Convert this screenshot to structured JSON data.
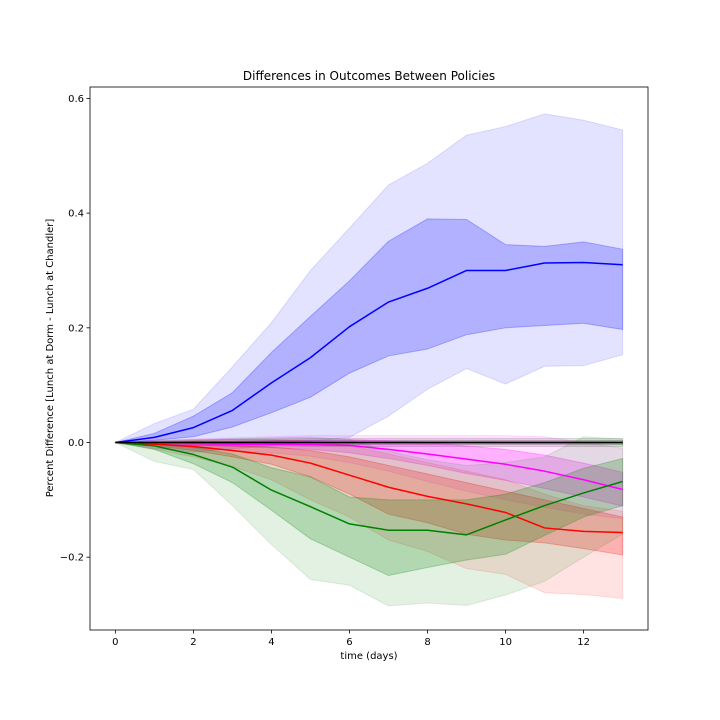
{
  "chart_data": {
    "type": "line",
    "title": "Differences in Outcomes Between Policies",
    "xlabel": "time (days)",
    "ylabel": "Percent Difference [Lunch at Dorm - Lunch at Chandler]",
    "xlim": [
      -0.65,
      13.65
    ],
    "ylim": [
      -0.327,
      0.62
    ],
    "xticks": [
      0,
      2,
      4,
      6,
      8,
      10,
      12
    ],
    "yticks": [
      -0.2,
      0.0,
      0.2,
      0.4,
      0.6
    ],
    "xtick_labels": [
      "0",
      "2",
      "4",
      "6",
      "8",
      "10",
      "12"
    ],
    "ytick_labels": [
      "−0.2",
      "0.0",
      "0.2",
      "0.4",
      "0.6"
    ],
    "grid": false,
    "legend": "none",
    "x": [
      0,
      1,
      2,
      3,
      4,
      5,
      6,
      7,
      8,
      9,
      10,
      11,
      12,
      13
    ],
    "series": [
      {
        "color": "#0000ff",
        "mean": [
          0,
          0.009,
          0.026,
          0.056,
          0.104,
          0.148,
          0.202,
          0.245,
          0.269,
          0.3,
          0.3,
          0.313,
          0.314,
          0.31
        ],
        "inner_low": [
          0,
          0.004,
          0.01,
          0.027,
          0.052,
          0.079,
          0.121,
          0.151,
          0.163,
          0.188,
          0.2,
          0.204,
          0.208,
          0.197
        ],
        "inner_high": [
          0,
          0.016,
          0.046,
          0.087,
          0.157,
          0.22,
          0.282,
          0.351,
          0.39,
          0.389,
          0.345,
          0.342,
          0.35,
          0.337
        ],
        "outer_low": [
          0,
          -0.01,
          -0.017,
          -0.011,
          -0.006,
          0.002,
          0.009,
          0.046,
          0.093,
          0.129,
          0.102,
          0.133,
          0.134,
          0.153
        ],
        "outer_high": [
          0,
          0.033,
          0.058,
          0.132,
          0.209,
          0.3,
          0.374,
          0.449,
          0.487,
          0.536,
          0.551,
          0.573,
          0.562,
          0.545
        ]
      },
      {
        "color": "#000000",
        "mean": [
          0,
          0.0,
          0.0,
          0.0,
          0.0,
          0.0,
          0.0,
          0.0,
          0.0,
          0.0,
          0.0,
          0.0,
          0.0,
          0.0
        ],
        "inner_low": [
          0,
          -0.001,
          -0.002,
          -0.002,
          -0.003,
          -0.003,
          -0.003,
          -0.003,
          -0.003,
          -0.003,
          -0.003,
          -0.003,
          -0.003,
          -0.003
        ],
        "inner_high": [
          0,
          0.001,
          0.002,
          0.002,
          0.003,
          0.003,
          0.003,
          0.003,
          0.003,
          0.003,
          0.003,
          0.003,
          0.003,
          0.003
        ],
        "outer_low": [
          0,
          -0.003,
          -0.005,
          -0.006,
          -0.006,
          -0.007,
          -0.007,
          -0.007,
          -0.007,
          -0.007,
          -0.007,
          -0.007,
          -0.007,
          -0.007
        ],
        "outer_high": [
          0,
          0.003,
          0.005,
          0.006,
          0.006,
          0.007,
          0.007,
          0.007,
          0.007,
          0.007,
          0.007,
          0.007,
          0.007,
          0.007
        ]
      },
      {
        "color": "#ff00ff",
        "mean": [
          0,
          -0.001,
          -0.002,
          -0.003,
          -0.003,
          -0.004,
          -0.005,
          -0.012,
          -0.02,
          -0.029,
          -0.038,
          -0.05,
          -0.065,
          -0.082
        ],
        "inner_low": [
          0,
          -0.003,
          -0.005,
          -0.007,
          -0.009,
          -0.012,
          -0.018,
          -0.028,
          -0.04,
          -0.054,
          -0.066,
          -0.08,
          -0.095,
          -0.111
        ],
        "inner_high": [
          0,
          0.001,
          0.002,
          0.002,
          0.003,
          0.004,
          0.005,
          0.003,
          0.0,
          -0.006,
          -0.012,
          -0.022,
          -0.036,
          -0.052
        ],
        "outer_low": [
          0,
          -0.006,
          -0.01,
          -0.014,
          -0.018,
          -0.024,
          -0.035,
          -0.05,
          -0.068,
          -0.085,
          -0.1,
          -0.113,
          -0.125,
          -0.133
        ],
        "outer_high": [
          0,
          0.004,
          0.006,
          0.008,
          0.01,
          0.012,
          0.012,
          0.012,
          0.012,
          0.012,
          0.012,
          0.01,
          0.0,
          -0.01
        ]
      },
      {
        "color": "#ff0000",
        "mean": [
          0,
          -0.003,
          -0.007,
          -0.014,
          -0.022,
          -0.036,
          -0.057,
          -0.078,
          -0.094,
          -0.107,
          -0.122,
          -0.149,
          -0.155,
          -0.157
        ],
        "inner_low": [
          0,
          -0.006,
          -0.014,
          -0.025,
          -0.038,
          -0.06,
          -0.09,
          -0.125,
          -0.14,
          -0.16,
          -0.17,
          -0.175,
          -0.185,
          -0.196
        ],
        "inner_high": [
          0,
          -0.001,
          -0.002,
          -0.005,
          -0.008,
          -0.014,
          -0.025,
          -0.04,
          -0.055,
          -0.07,
          -0.085,
          -0.1,
          -0.115,
          -0.13
        ],
        "outer_low": [
          0,
          -0.012,
          -0.025,
          -0.042,
          -0.065,
          -0.1,
          -0.13,
          -0.17,
          -0.19,
          -0.22,
          -0.23,
          -0.262,
          -0.265,
          -0.272
        ],
        "outer_high": [
          0,
          0.002,
          0.004,
          0.005,
          0.005,
          0.002,
          -0.005,
          -0.02,
          -0.035,
          -0.05,
          -0.065,
          -0.09,
          -0.11,
          -0.12
        ]
      },
      {
        "color": "#008000",
        "mean": [
          0,
          -0.006,
          -0.021,
          -0.043,
          -0.083,
          -0.112,
          -0.142,
          -0.153,
          -0.153,
          -0.161,
          -0.135,
          -0.11,
          -0.088,
          -0.068
        ],
        "inner_low": [
          0,
          -0.012,
          -0.037,
          -0.07,
          -0.118,
          -0.168,
          -0.2,
          -0.232,
          -0.218,
          -0.205,
          -0.195,
          -0.162,
          -0.13,
          -0.11
        ],
        "inner_high": [
          0,
          -0.002,
          -0.008,
          -0.02,
          -0.044,
          -0.06,
          -0.095,
          -0.1,
          -0.1,
          -0.1,
          -0.09,
          -0.07,
          -0.045,
          -0.028
        ],
        "outer_low": [
          0,
          -0.033,
          -0.047,
          -0.11,
          -0.178,
          -0.239,
          -0.249,
          -0.285,
          -0.28,
          -0.284,
          -0.266,
          -0.242,
          -0.2,
          -0.16
        ],
        "outer_high": [
          0,
          0.002,
          0.003,
          0.006,
          0.008,
          0.009,
          0.005,
          -0.015,
          -0.03,
          -0.04,
          -0.035,
          -0.025,
          0.01,
          0.006
        ]
      }
    ]
  }
}
